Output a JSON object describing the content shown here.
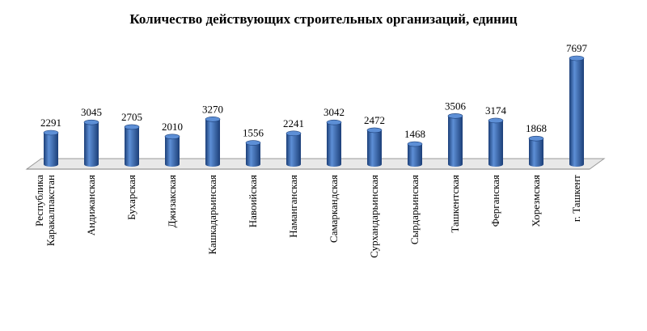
{
  "chart_data": {
    "type": "bar",
    "title": "Количество действующих строительных организаций, единиц",
    "categories": [
      [
        "Республика",
        "Каракалпакстан"
      ],
      [
        "Андижанская"
      ],
      [
        "Бухарская"
      ],
      [
        "Джизакская"
      ],
      [
        "Кашкадарьинская"
      ],
      [
        "Навоийская"
      ],
      [
        "Наманганская"
      ],
      [
        "Самаркандская"
      ],
      [
        "Сурхандарьинская"
      ],
      [
        "Сырдарьинская"
      ],
      [
        "Ташкентская"
      ],
      [
        "Ферганская"
      ],
      [
        "Хорезмская"
      ],
      [
        "г. Ташкент"
      ]
    ],
    "values": [
      2291,
      3045,
      2705,
      2010,
      3270,
      1556,
      2241,
      3042,
      2472,
      1468,
      3506,
      3174,
      1868,
      7697
    ],
    "value_labels": [
      "2291",
      "3045",
      "2705",
      "2010",
      "3270",
      "1556",
      "2241",
      "3042",
      "2472",
      "1468",
      "3506",
      "3174",
      "1868",
      "7697"
    ],
    "ylim": [
      0,
      7697
    ],
    "bar_style": "3d-cylinder",
    "grid": false,
    "legend": "none",
    "colors": {
      "bar": "#2E5FA8",
      "bar_light": "#5D8FD6",
      "bar_dark": "#1C3F78",
      "floor": "#E8E8E8"
    }
  }
}
